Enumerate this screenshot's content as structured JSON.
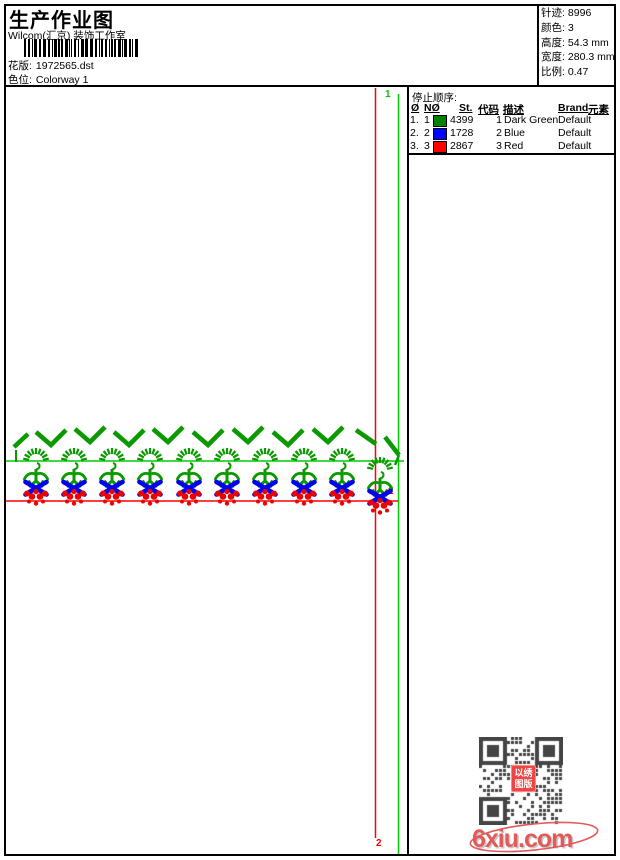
{
  "header": {
    "title": "生产作业图",
    "subtitle": "Wilcom(汇京) 装饰工作室",
    "design_file_label": "花版:",
    "design_file": "1972565.dst",
    "colorway_label": "色位:",
    "colorway": "Colorway 1",
    "stats": [
      {
        "label": "针迹:",
        "value": "8996"
      },
      {
        "label": "颜色:",
        "value": "3"
      },
      {
        "label": "高度:",
        "value": "54.3 mm"
      },
      {
        "label": "宽度:",
        "value": "280.3 mm"
      },
      {
        "label": "比例:",
        "value": "0.47"
      }
    ]
  },
  "stop_sequence": {
    "title": "停止顺序:",
    "columns": [
      "Ø",
      "NØ",
      "St.",
      "代码",
      "描述",
      "Brand",
      "元素"
    ],
    "rows": [
      {
        "seq": "1.",
        "n": "1",
        "swatch_color": "#008000",
        "st": "4399",
        "code": "1",
        "desc": "Dark Green",
        "brand": "Default",
        "element": ""
      },
      {
        "seq": "2.",
        "n": "2",
        "swatch_color": "#0000ff",
        "st": "1728",
        "code": "2",
        "desc": "Blue",
        "brand": "Default",
        "element": ""
      },
      {
        "seq": "3.",
        "n": "3",
        "swatch_color": "#ff0000",
        "st": "2867",
        "code": "3",
        "desc": "Red",
        "brand": "Default",
        "element": ""
      }
    ]
  },
  "canvas": {
    "start_marker": "1",
    "end_marker_mid": "2",
    "end_marker_bottom": "2",
    "colors": {
      "guide_green": "#00cc00",
      "guide_red": "#ff0000",
      "motif_green": "#0a9a00",
      "motif_blue": "#0000ee",
      "motif_red": "#ee0000"
    }
  },
  "watermark": {
    "qr_stamp_line1": "以绣",
    "qr_stamp_line2": "图版",
    "site": "6xiu.com",
    "site_color": "#e25a5a"
  }
}
